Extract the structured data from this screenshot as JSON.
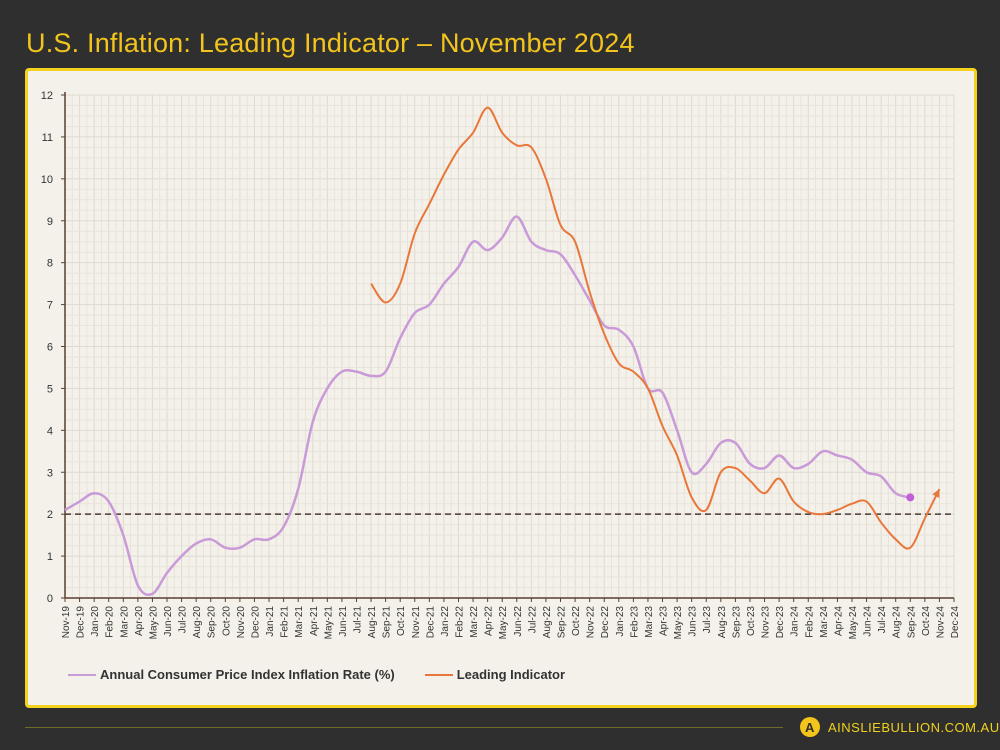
{
  "title": "U.S. Inflation: Leading Indicator – November 2024",
  "footer": {
    "brand": "AINSLIEBULLION.COM.AU",
    "logo_letter": "A"
  },
  "chart_data": {
    "type": "line",
    "title": "",
    "xlabel": "",
    "ylabel": "",
    "ylim": [
      0,
      12
    ],
    "yticks": [
      0,
      1,
      2,
      3,
      4,
      5,
      6,
      7,
      8,
      9,
      10,
      11,
      12
    ],
    "grid": true,
    "legend_position": "bottom-left",
    "reference_line": {
      "y": 2,
      "style": "dashed",
      "color": "#4a3b30"
    },
    "categories": [
      "Nov-19",
      "Dec-19",
      "Jan-20",
      "Feb-20",
      "Mar-20",
      "Apr-20",
      "May-20",
      "Jun-20",
      "Jul-20",
      "Aug-20",
      "Sep-20",
      "Oct-20",
      "Nov-20",
      "Dec-20",
      "Jan-21",
      "Feb-21",
      "Mar-21",
      "Apr-21",
      "May-21",
      "Jun-21",
      "Jul-21",
      "Aug-21",
      "Sep-21",
      "Oct-21",
      "Nov-21",
      "Dec-21",
      "Jan-22",
      "Feb-22",
      "Mar-22",
      "Apr-22",
      "May-22",
      "Jun-22",
      "Jul-22",
      "Aug-22",
      "Sep-22",
      "Oct-22",
      "Nov-22",
      "Dec-22",
      "Jan-23",
      "Feb-23",
      "Mar-23",
      "Apr-23",
      "May-23",
      "Jun-23",
      "Jul-23",
      "Aug-23",
      "Sep-23",
      "Oct-23",
      "Nov-23",
      "Dec-23",
      "Jan-24",
      "Feb-24",
      "Mar-24",
      "Apr-24",
      "May-24",
      "Jun-24",
      "Jul-24",
      "Aug-24",
      "Sep-24",
      "Oct-24",
      "Nov-24",
      "Dec-24"
    ],
    "series": [
      {
        "name": "Annual Consumer Price Index Inflation Rate (%)",
        "color": "#c99ad8",
        "values": [
          2.1,
          2.3,
          2.5,
          2.3,
          1.5,
          0.3,
          0.1,
          0.6,
          1.0,
          1.3,
          1.4,
          1.2,
          1.2,
          1.4,
          1.4,
          1.7,
          2.6,
          4.2,
          5.0,
          5.4,
          5.4,
          5.3,
          5.4,
          6.2,
          6.8,
          7.0,
          7.5,
          7.9,
          8.5,
          8.3,
          8.6,
          9.1,
          8.5,
          8.3,
          8.2,
          7.7,
          7.1,
          6.5,
          6.4,
          6.0,
          5.0,
          4.9,
          4.0,
          3.0,
          3.2,
          3.7,
          3.7,
          3.2,
          3.1,
          3.4,
          3.1,
          3.2,
          3.5,
          3.4,
          3.3,
          3.0,
          2.9,
          2.5,
          2.4,
          null,
          null,
          null
        ]
      },
      {
        "name": "Leading Indicator",
        "color": "#e8773a",
        "values": [
          null,
          null,
          null,
          null,
          null,
          null,
          null,
          null,
          null,
          null,
          null,
          null,
          null,
          null,
          null,
          null,
          null,
          null,
          null,
          null,
          null,
          7.5,
          7.05,
          7.5,
          8.7,
          9.4,
          10.1,
          10.7,
          11.1,
          11.7,
          11.1,
          10.8,
          10.75,
          10.0,
          8.9,
          8.5,
          7.3,
          6.3,
          5.6,
          5.4,
          5.0,
          4.1,
          3.4,
          2.4,
          2.1,
          3.0,
          3.1,
          2.8,
          2.5,
          2.85,
          2.3,
          2.05,
          2.0,
          2.1,
          2.25,
          2.3,
          1.8,
          1.4,
          1.2,
          1.9,
          2.6,
          null
        ]
      }
    ]
  }
}
